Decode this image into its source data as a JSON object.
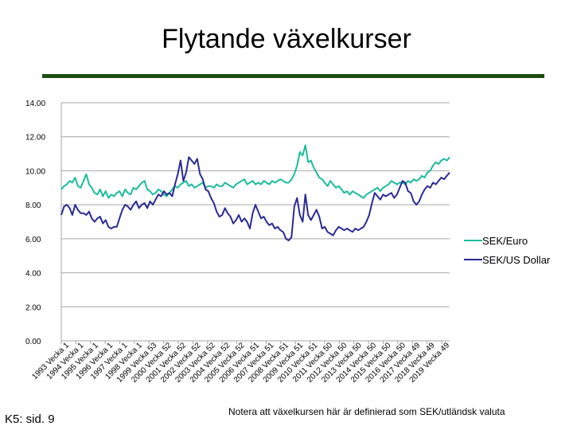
{
  "title": "Flytande växelkurser",
  "footer_left": "K5: sid. 9",
  "footer_right": "Notera att växelkursen här är definierad som SEK/utländsk valuta",
  "colors": {
    "euro": "#1abc9c",
    "usd": "#2a2a96",
    "grid": "#a6a6a6",
    "rule": "#1e4d12"
  },
  "chart_data": {
    "type": "line",
    "title": "Flytande växelkurser",
    "xlabel": "",
    "ylabel": "",
    "ylim": [
      0,
      14
    ],
    "yticks": [
      "0.00",
      "2.00",
      "4.00",
      "6.00",
      "8.00",
      "10.00",
      "12.00",
      "14.00"
    ],
    "grid": true,
    "legend_position": "right",
    "xticks": [
      "1993 Vecka 1",
      "1994 Vecka 1",
      "1995 Vecka 1",
      "1996 Vecka 1",
      "1997 Vecka 1",
      "1998 Vecka 1",
      "1999 Vecka 53",
      "2000 Vecka 52",
      "2001 Vecka 52",
      "2002 Vecka 52",
      "2003 Vecka 52",
      "2004 Vecka 52",
      "2005 Vecka 52",
      "2006 Vecka 51",
      "2007 Vecka 51",
      "2008 Vecka 51",
      "2009 Vecka 51",
      "2010 Vecka 51",
      "2011 Vecka 50",
      "2012 Vecka 50",
      "2013 Vecka 50",
      "2014 Vecka 50",
      "2015 Vecka 50",
      "2016 Vecka 50",
      "2017 Vecka 49",
      "2018 Vecka 49",
      "2019 Vecka 49"
    ],
    "series": [
      {
        "name": "SEK/Euro",
        "values": [
          8.9,
          9.1,
          9.2,
          9.4,
          9.3,
          9.6,
          9.1,
          9.0,
          9.4,
          9.8,
          9.2,
          9.0,
          8.7,
          8.6,
          8.9,
          8.5,
          8.8,
          8.4,
          8.6,
          8.5,
          8.7,
          8.8,
          8.5,
          8.9,
          8.7,
          8.6,
          9.0,
          8.9,
          9.1,
          9.3,
          9.4,
          8.9,
          8.8,
          8.6,
          8.7,
          8.9,
          8.8,
          8.6,
          8.5,
          8.7,
          8.9,
          9.1,
          9.0,
          9.2,
          9.3,
          9.4,
          9.1,
          9.2,
          9.0,
          9.1,
          9.2,
          9.3,
          9.0,
          9.1,
          9.1,
          9.0,
          9.2,
          9.1,
          9.1,
          9.3,
          9.2,
          9.1,
          9.0,
          9.2,
          9.3,
          9.4,
          9.5,
          9.2,
          9.3,
          9.4,
          9.2,
          9.3,
          9.2,
          9.4,
          9.3,
          9.2,
          9.4,
          9.3,
          9.4,
          9.5,
          9.4,
          9.3,
          9.3,
          9.5,
          9.8,
          10.3,
          11.1,
          10.9,
          11.5,
          10.5,
          10.6,
          10.2,
          9.9,
          9.6,
          9.5,
          9.3,
          9.1,
          9.4,
          9.2,
          9.0,
          9.1,
          8.9,
          8.7,
          8.8,
          8.6,
          8.8,
          8.7,
          8.6,
          8.5,
          8.4,
          8.6,
          8.7,
          8.8,
          8.9,
          9.0,
          8.8,
          9.0,
          9.1,
          9.2,
          9.4,
          9.3,
          9.2,
          9.3,
          9.3,
          9.2,
          9.4,
          9.3,
          9.5,
          9.4,
          9.5,
          9.7,
          9.6,
          9.9,
          10.0,
          10.3,
          10.5,
          10.4,
          10.6,
          10.7,
          10.6,
          10.8
        ]
      },
      {
        "name": "SEK/US Dollar",
        "values": [
          7.4,
          7.9,
          8.0,
          7.8,
          7.4,
          8.0,
          7.7,
          7.5,
          7.5,
          7.4,
          7.6,
          7.2,
          7.0,
          7.2,
          7.3,
          6.9,
          7.1,
          6.7,
          6.6,
          6.7,
          6.7,
          7.2,
          7.7,
          8.0,
          7.9,
          7.7,
          8.0,
          8.2,
          7.8,
          8.0,
          8.1,
          7.8,
          8.2,
          8.0,
          8.3,
          8.6,
          8.5,
          8.8,
          8.6,
          8.7,
          8.5,
          9.2,
          9.8,
          10.6,
          9.4,
          9.9,
          10.8,
          10.6,
          10.4,
          10.7,
          9.8,
          9.5,
          8.9,
          8.8,
          8.4,
          8.1,
          7.6,
          7.3,
          7.4,
          7.8,
          7.5,
          7.3,
          6.9,
          7.1,
          7.4,
          7.0,
          7.2,
          7.0,
          6.6,
          7.5,
          8.0,
          7.6,
          7.2,
          7.3,
          7.0,
          6.8,
          6.9,
          6.6,
          6.7,
          6.5,
          6.4,
          6.0,
          5.9,
          6.1,
          7.9,
          8.4,
          7.4,
          7.0,
          8.6,
          7.4,
          7.1,
          7.4,
          7.7,
          7.3,
          6.6,
          6.7,
          6.4,
          6.3,
          6.2,
          6.5,
          6.7,
          6.6,
          6.5,
          6.6,
          6.5,
          6.4,
          6.6,
          6.5,
          6.6,
          6.7,
          7.0,
          7.4,
          8.1,
          8.7,
          8.5,
          8.3,
          8.6,
          8.5,
          8.6,
          8.7,
          8.4,
          8.6,
          9.0,
          9.4,
          9.3,
          8.8,
          8.7,
          8.2,
          8.0,
          8.2,
          8.6,
          8.9,
          9.1,
          9.0,
          9.3,
          9.2,
          9.4,
          9.6,
          9.5,
          9.7,
          9.9
        ]
      }
    ]
  }
}
